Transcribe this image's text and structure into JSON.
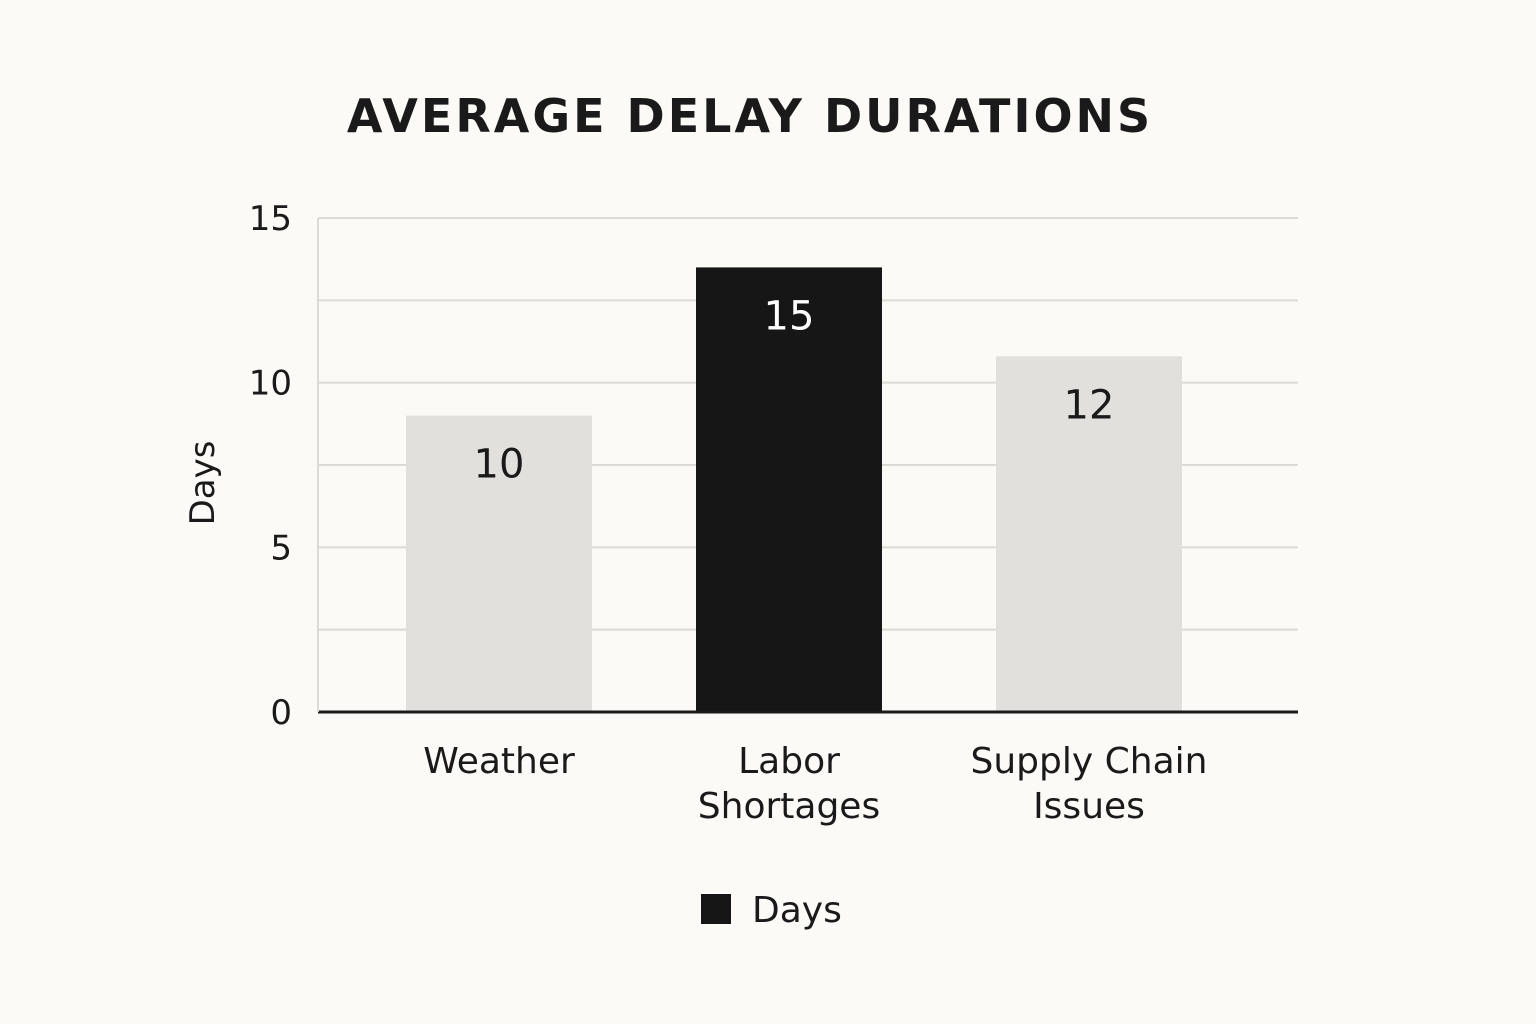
{
  "chart_data": {
    "type": "bar",
    "title": "AVERAGE DELAY DURATIONS",
    "xlabel": "",
    "ylabel": "Days",
    "ylim": [
      0,
      15
    ],
    "yticks": [
      "0",
      "5",
      "10",
      "15"
    ],
    "categories": [
      [
        "Weather"
      ],
      [
        "Labor",
        "Shortages"
      ],
      [
        "Supply Chain",
        "Issues"
      ]
    ],
    "series": [
      {
        "name": "Days",
        "values": [
          10,
          15,
          12
        ],
        "data_labels": [
          "10",
          "15",
          "12"
        ]
      }
    ],
    "bar_colors": [
      "#e2e0dc",
      "#161616",
      "#e2e0dc"
    ],
    "label_colors": [
      "#1a1a1a",
      "#ffffff",
      "#1a1a1a"
    ],
    "legend": {
      "position": "bottom",
      "entries": [
        {
          "label": "Days",
          "color": "#161616"
        }
      ]
    },
    "grid": true,
    "gridline_color": "#dcdad4",
    "axis_color": "#1a1a1a"
  }
}
